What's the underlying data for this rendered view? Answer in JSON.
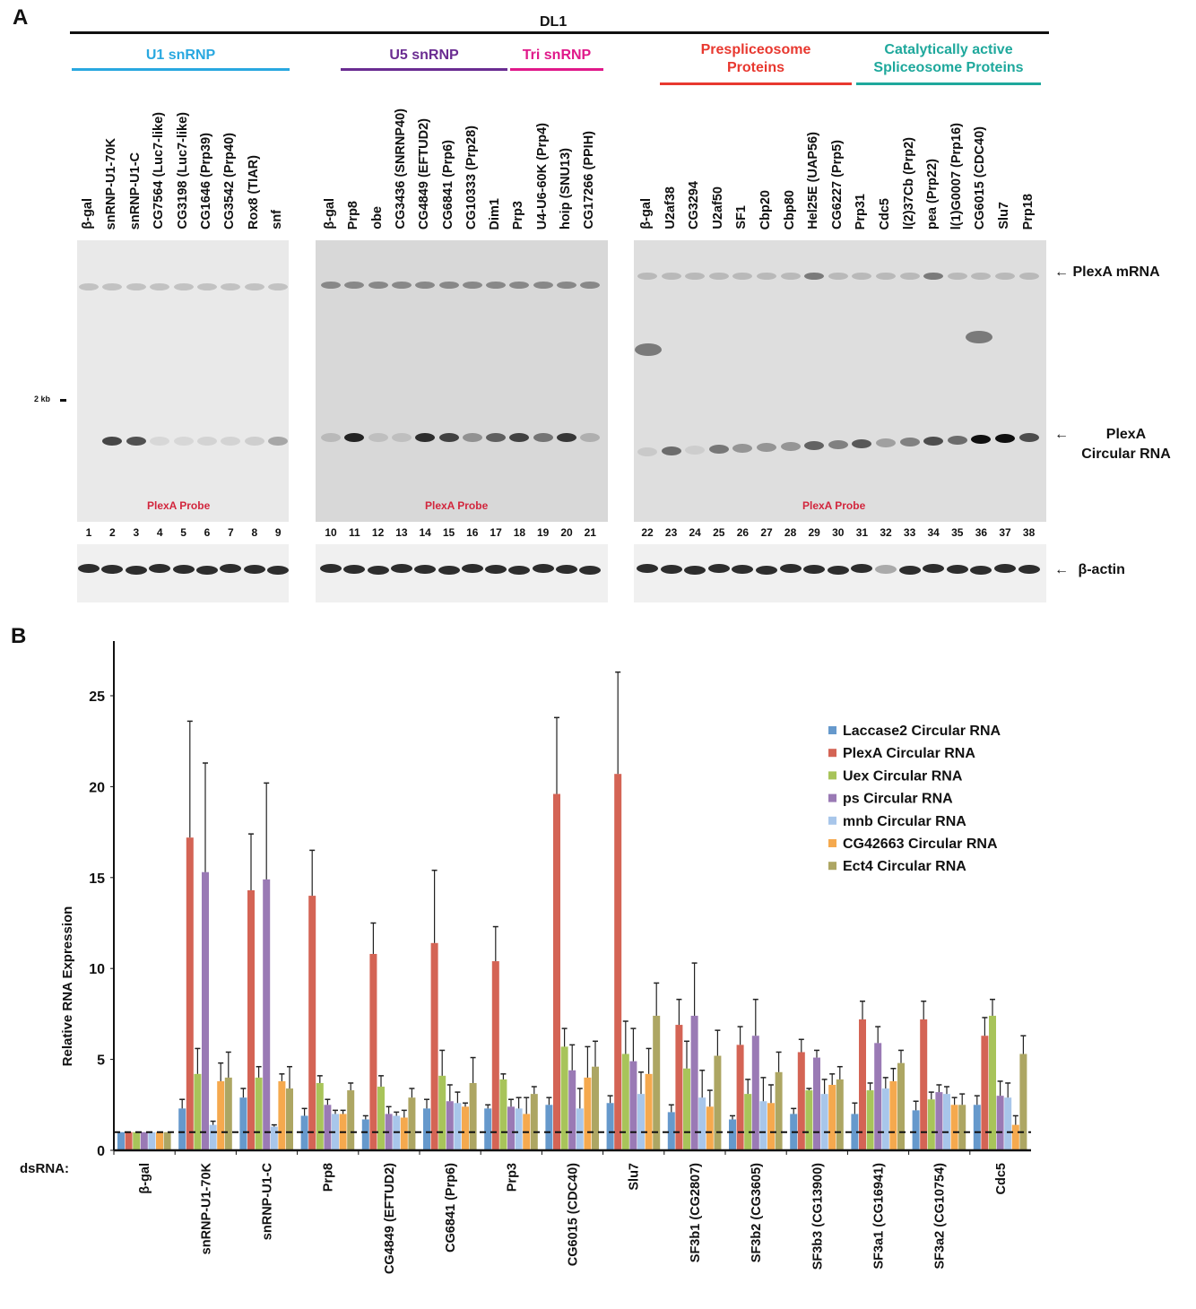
{
  "panel_a": {
    "letter": "A",
    "cell_line": "DL1",
    "groups": [
      {
        "label": "U1 snRNP",
        "color": "#29a8e0"
      },
      {
        "label": "U5 snRNP",
        "color": "#6a2c91"
      },
      {
        "label": "Tri snRNP",
        "color": "#e0198a"
      },
      {
        "label": "Prespliceosome Proteins",
        "label_line1": "Prespliceosome",
        "label_line2": "Proteins",
        "color": "#e8382f"
      },
      {
        "label": "Catalytically active Spliceosome Proteins",
        "label_line1": "Catalytically active",
        "label_line2": "Spliceosome Proteins",
        "color": "#1ea89c"
      }
    ],
    "blots": [
      {
        "lanes": [
          "β-gal",
          "snRNP-U1-70K",
          "snRNP-U1-C",
          "CG7564 (Luc7-like)",
          "CG3198 (Luc7-like)",
          "CG1646 (Prp39)",
          "CG3542 (Prp40)",
          "Rox8 (TIAR)",
          "snf"
        ],
        "numbers": [
          "1",
          "2",
          "3",
          "4",
          "5",
          "6",
          "7",
          "8",
          "9"
        ],
        "probe": "PlexA Probe"
      },
      {
        "lanes": [
          "β-gal",
          "Prp8",
          "obe",
          "CG3436 (SNRNP40)",
          "CG4849 (EFTUD2)",
          "CG6841 (Prp6)",
          "CG10333 (Prp28)",
          "Dim1",
          "Prp3",
          "U4-U6-60K (Prp4)",
          "hoip (SNU13)",
          "CG17266 (PPIH)"
        ],
        "numbers": [
          "10",
          "11",
          "12",
          "13",
          "14",
          "15",
          "16",
          "17",
          "18",
          "19",
          "20",
          "21"
        ],
        "probe": "PlexA Probe"
      },
      {
        "lanes": [
          "β-gal",
          "U2af38",
          "CG3294",
          "U2af50",
          "SF1",
          "Cbp20",
          "Cbp80",
          "Hel25E (UAP56)",
          "CG6227 (Prp5)",
          "Prp31",
          "Cdc5",
          "l(2)37Cb (Prp2)",
          "pea (Prp22)",
          "l(1)G0007 (Prp16)",
          "CG6015 (CDC40)",
          "Slu7",
          "Prp18"
        ],
        "numbers": [
          "22",
          "23",
          "24",
          "25",
          "26",
          "27",
          "28",
          "29",
          "30",
          "31",
          "32",
          "33",
          "34",
          "35",
          "36",
          "37",
          "38"
        ],
        "probe": "PlexA Probe"
      }
    ],
    "marker": "2 kb",
    "annotations": {
      "mrna": "PlexA mRNA",
      "circ_line1": "PlexA",
      "circ_line2": "Circular RNA",
      "actin": "β-actin",
      "arrow": "←"
    }
  },
  "panel_b": {
    "letter": "B",
    "dsrna_label": "dsRNA:"
  },
  "chart_data": {
    "type": "bar",
    "title": "",
    "xlabel": "dsRNA:",
    "ylabel": "Relative RNA Expression",
    "ylim": [
      0,
      27
    ],
    "yticks": [
      0,
      5,
      10,
      15,
      20,
      25
    ],
    "grid": false,
    "legend_position": "top-right",
    "reference_line": {
      "y": 1,
      "style": "dashed"
    },
    "categories": [
      "β-gal",
      "snRNP-U1-70K",
      "snRNP-U1-C",
      "Prp8",
      "CG4849 (EFTUD2)",
      "CG6841 (Prp6)",
      "Prp3",
      "CG6015 (CDC40)",
      "Slu7",
      "SF3b1 (CG2807)",
      "SF3b2 (CG3605)",
      "SF3b3 (CG13900)",
      "SF3a1 (CG16941)",
      "SF3a2 (CG10754)",
      "Cdc5"
    ],
    "series": [
      {
        "name": "Laccase2 Circular RNA",
        "color": "#6699cc",
        "values": [
          1,
          2.3,
          2.9,
          1.9,
          1.7,
          2.3,
          2.3,
          2.5,
          2.6,
          2.1,
          1.7,
          2.0,
          2.0,
          2.2,
          2.5
        ],
        "errors": [
          0,
          0.5,
          0.5,
          0.4,
          0.2,
          0.5,
          0.2,
          0.4,
          0.4,
          0.4,
          0.2,
          0.3,
          0.6,
          0.5,
          0.5
        ]
      },
      {
        "name": "PlexA Circular RNA",
        "color": "#d46455",
        "values": [
          1,
          17.2,
          14.3,
          14.0,
          10.8,
          11.4,
          10.4,
          19.6,
          20.7,
          6.9,
          5.8,
          5.4,
          7.2,
          7.2,
          6.3
        ],
        "errors": [
          0,
          6.4,
          3.1,
          2.5,
          1.7,
          4.0,
          1.9,
          4.2,
          5.6,
          1.4,
          1.0,
          0.7,
          1.0,
          1.0,
          1.0
        ]
      },
      {
        "name": "Uex Circular RNA",
        "color": "#a8c45a",
        "values": [
          1,
          4.2,
          4.0,
          3.7,
          3.5,
          4.1,
          3.9,
          5.7,
          5.3,
          4.5,
          3.1,
          3.3,
          3.3,
          2.8,
          7.4
        ],
        "errors": [
          0,
          1.4,
          0.6,
          0.4,
          0.6,
          1.4,
          0.3,
          1.0,
          1.8,
          1.5,
          0.8,
          0.1,
          0.4,
          0.4,
          0.9
        ]
      },
      {
        "name": "ps Circular RNA",
        "color": "#9a7ab5",
        "values": [
          1,
          15.3,
          14.9,
          2.5,
          2.0,
          2.7,
          2.4,
          4.4,
          4.9,
          7.4,
          6.3,
          5.1,
          5.9,
          3.2,
          3.0
        ],
        "errors": [
          0,
          6.0,
          5.3,
          0.3,
          0.4,
          0.9,
          0.4,
          1.4,
          1.8,
          2.9,
          2.0,
          0.4,
          0.9,
          0.4,
          0.8
        ]
      },
      {
        "name": "mnb Circular RNA",
        "color": "#a8c6ea",
        "values": [
          1,
          1.4,
          1.3,
          2.0,
          1.9,
          2.6,
          2.3,
          2.3,
          3.1,
          2.9,
          2.7,
          3.1,
          3.4,
          3.1,
          2.9
        ],
        "errors": [
          0,
          0.2,
          0.1,
          0.2,
          0.2,
          0.6,
          0.6,
          1.1,
          1.2,
          1.5,
          1.3,
          0.8,
          0.6,
          0.4,
          0.8
        ]
      },
      {
        "name": "CG42663 Circular RNA",
        "color": "#f5a94e",
        "values": [
          1,
          3.8,
          3.8,
          2.0,
          1.8,
          2.4,
          2.0,
          4.0,
          4.2,
          2.4,
          2.6,
          3.6,
          3.8,
          2.5,
          1.4
        ],
        "errors": [
          0,
          1.0,
          0.4,
          0.2,
          0.4,
          0.2,
          0.9,
          1.7,
          1.4,
          0.9,
          1.0,
          0.6,
          0.7,
          0.4,
          0.5
        ]
      },
      {
        "name": "Ect4 Circular RNA",
        "color": "#ada663",
        "values": [
          1,
          4.0,
          3.4,
          3.3,
          2.9,
          3.7,
          3.1,
          4.6,
          7.4,
          5.2,
          4.3,
          3.9,
          4.8,
          2.5,
          5.3
        ],
        "errors": [
          0,
          1.4,
          1.2,
          0.4,
          0.5,
          1.4,
          0.4,
          1.4,
          1.8,
          1.4,
          1.1,
          0.7,
          0.7,
          0.6,
          1.0
        ]
      }
    ]
  }
}
